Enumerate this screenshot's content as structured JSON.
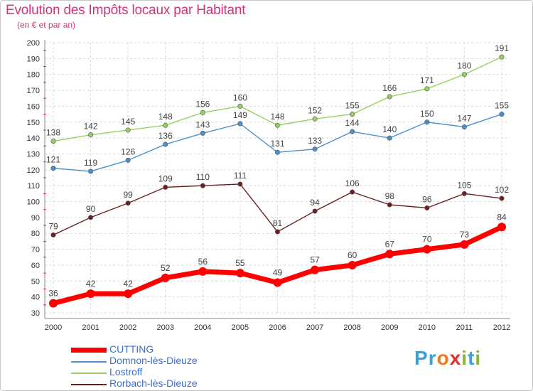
{
  "title": "Evolution des Impôts locaux par Habitant",
  "subtitle": "(en € et par an)",
  "logo": {
    "text": "Proxiti",
    "letters": [
      "P",
      "r",
      "o",
      "x",
      "i",
      "t",
      "i"
    ],
    "colors": [
      "#3aa0d8",
      "#3aa0d8",
      "#f07820",
      "#e03030",
      "#80b830",
      "#3aa0d8",
      "#80b830"
    ]
  },
  "chart_data": {
    "type": "line",
    "title": "Evolution des Impôts locaux par Habitant",
    "subtitle": "(en € et par an)",
    "x": [
      "2000",
      "2001",
      "2002",
      "2003",
      "2004",
      "2005",
      "2006",
      "2007",
      "2008",
      "2009",
      "2010",
      "2011",
      "2012"
    ],
    "ylim": [
      30,
      200
    ],
    "yticks": [
      30,
      40,
      50,
      60,
      70,
      80,
      90,
      100,
      110,
      120,
      130,
      140,
      150,
      160,
      170,
      180,
      190,
      200
    ],
    "grid": true,
    "legend_position": "bottom-left",
    "series": [
      {
        "name": "CUTTING",
        "color": "#ff0000",
        "values": [
          36,
          42,
          42,
          52,
          56,
          55,
          49,
          57,
          60,
          67,
          70,
          73,
          84
        ]
      },
      {
        "name": "Domnon-lès-Dieuze",
        "color": "#4f8fc8",
        "values": [
          121,
          119,
          126,
          136,
          143,
          149,
          131,
          133,
          144,
          140,
          150,
          147,
          155
        ]
      },
      {
        "name": "Lostroff",
        "color": "#96d060",
        "values": [
          138,
          142,
          145,
          148,
          156,
          160,
          148,
          152,
          155,
          166,
          171,
          180,
          191
        ]
      },
      {
        "name": "Rorbach-lès-Dieuze",
        "color": "#6a2020",
        "values": [
          79,
          90,
          99,
          109,
          110,
          111,
          81,
          94,
          106,
          98,
          96,
          105,
          102
        ]
      }
    ]
  }
}
